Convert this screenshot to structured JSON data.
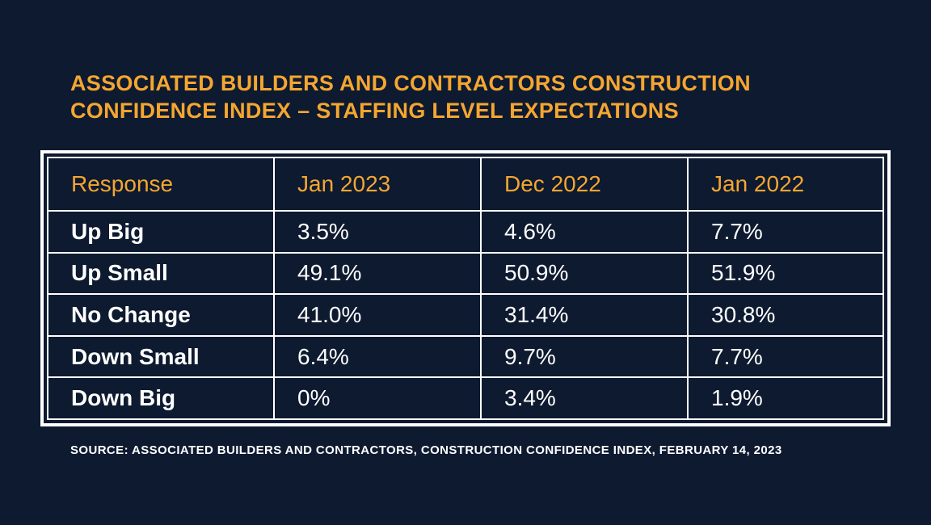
{
  "title": "ASSOCIATED BUILDERS AND CONTRACTORS CONSTRUCTION CONFIDENCE INDEX – STAFFING LEVEL EXPECTATIONS",
  "source": "SOURCE: ASSOCIATED BUILDERS AND CONTRACTORS, CONSTRUCTION CONFIDENCE INDEX, FEBRUARY 14, 2023",
  "colors": {
    "background": "#0d1a30",
    "accent": "#f5a630",
    "text": "#ffffff",
    "border": "#ffffff"
  },
  "chart_data": {
    "type": "table",
    "title": "ASSOCIATED BUILDERS AND CONTRACTORS CONSTRUCTION CONFIDENCE INDEX – STAFFING LEVEL EXPECTATIONS",
    "columns": [
      "Response",
      "Jan 2023",
      "Dec 2022",
      "Jan 2022"
    ],
    "rows": [
      [
        "Up Big",
        "3.5%",
        "4.6%",
        "7.7%"
      ],
      [
        "Up Small",
        "49.1%",
        "50.9%",
        "51.9%"
      ],
      [
        "No Change",
        "41.0%",
        "31.4%",
        "30.8%"
      ],
      [
        "Down Small",
        "6.4%",
        "9.7%",
        "7.7%"
      ],
      [
        "Down Big",
        "0%",
        "3.4%",
        "1.9%"
      ]
    ]
  }
}
